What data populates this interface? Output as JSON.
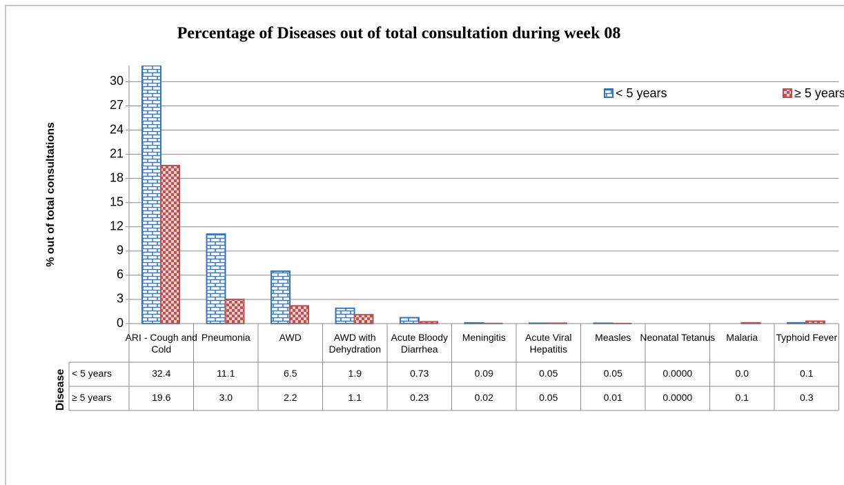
{
  "chart_data": {
    "type": "bar",
    "title": "Percentage of Diseases out of total consultation during week 08",
    "y_label": "% out of total consultations",
    "x_label": "Disease",
    "categories": [
      "ARI - Cough and Cold",
      "Pneumonia",
      "AWD",
      "AWD with Dehydration",
      "Acute Bloody Diarrhea",
      "Meningitis",
      "Acute Viral Hepatitis",
      "Measles",
      "Neonatal Tetanus",
      "Malaria",
      "Typhoid Fever"
    ],
    "series": [
      {
        "name": "< 5 years",
        "color": "#2e75c8",
        "values": [
          32.4,
          11.1,
          6.5,
          1.9,
          0.73,
          0.09,
          0.05,
          0.05,
          0,
          0,
          0.1
        ],
        "value_labels": [
          "32.4",
          "11.1",
          "6.5",
          "1.9",
          "0.73",
          "0.09",
          "0.05",
          "0.05",
          "0.0000",
          "0.0",
          "0.1"
        ]
      },
      {
        "name": "≥ 5 years",
        "color": "#c0504d",
        "values": [
          19.6,
          3,
          2.2,
          1.1,
          0.23,
          0.02,
          0.05,
          0.01,
          0,
          0.1,
          0.3
        ],
        "value_labels": [
          "19.6",
          "3.0",
          "2.2",
          "1.1",
          "0.23",
          "0.02",
          "0.05",
          "0.01",
          "0.0000",
          "0.1",
          "0.3"
        ]
      }
    ],
    "ylim": [
      0,
      32
    ],
    "yticks": [
      0,
      3,
      6,
      9,
      12,
      15,
      18,
      21,
      24,
      27,
      30
    ],
    "grid": true,
    "legend": "top-right"
  }
}
